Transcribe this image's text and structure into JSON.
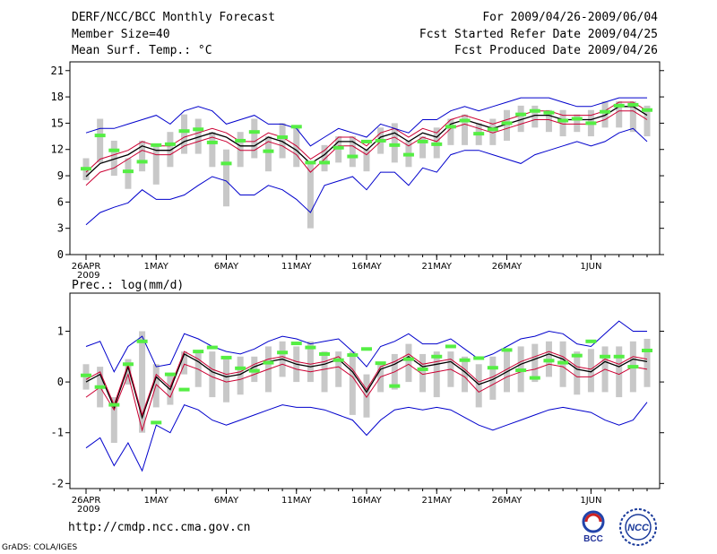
{
  "header": {
    "left": [
      "DERF/NCC/BCC Monthly Forecast",
      "Member Size=40",
      "Mean Surf. Temp.: °C"
    ],
    "right": [
      "For 2009/04/26-2009/06/04",
      "Fcst Started Refer Date 2009/04/25",
      "Fcst Produced Date 2009/04/26"
    ]
  },
  "footer": {
    "url": "http://cmdp.ncc.cma.gov.cn",
    "grads": "GrADS: COLA/IGES",
    "logo_bcc": "BCC",
    "logo_ncc": "NCC"
  },
  "colors": {
    "envelope": "#0000cc",
    "spread": "#cc0033",
    "mean": "#000000",
    "box": "#c8c8c8",
    "obs": "#55ee44"
  },
  "chart_data": [
    {
      "type": "line",
      "title": "Mean Surf. Temp.: °C",
      "days": 40,
      "ylim": [
        0,
        22
      ],
      "yticks": [
        0,
        3,
        6,
        9,
        12,
        15,
        18,
        21
      ],
      "xticks": [
        {
          "day": 0,
          "label": "26APR",
          "sub": "2009"
        },
        {
          "day": 5,
          "label": "1MAY"
        },
        {
          "day": 10,
          "label": "6MAY"
        },
        {
          "day": 15,
          "label": "11MAY"
        },
        {
          "day": 20,
          "label": "16MAY"
        },
        {
          "day": 25,
          "label": "21MAY"
        },
        {
          "day": 30,
          "label": "26MAY"
        },
        {
          "day": 36,
          "label": "1JUN"
        }
      ],
      "series": [
        {
          "name": "max",
          "values": [
            3.4,
            4.8,
            5.4,
            5.9,
            7.4,
            6.3,
            6.3,
            6.8,
            7.9,
            8.9,
            8.4,
            6.8,
            6.8,
            7.9,
            7.4,
            6.3,
            4.8,
            7.9,
            8.4,
            8.9,
            7.4,
            9.4,
            9.4,
            7.9,
            9.9,
            9.4,
            11.4,
            11.9,
            11.9,
            11.4,
            10.9,
            10.4,
            11.4,
            11.9,
            12.4,
            12.9,
            12.4,
            12.9,
            13.9,
            14.4,
            12.9
          ]
        },
        {
          "name": "upper",
          "values": [
            7.9,
            9.4,
            9.9,
            10.9,
            11.9,
            11.4,
            11.4,
            12.4,
            12.9,
            13.4,
            12.9,
            11.9,
            11.9,
            12.9,
            12.4,
            11.4,
            9.4,
            10.9,
            12.4,
            12.4,
            11.4,
            12.9,
            13.4,
            12.4,
            13.4,
            12.9,
            14.4,
            14.9,
            14.4,
            13.9,
            14.4,
            14.9,
            15.4,
            15.4,
            14.9,
            14.9,
            14.9,
            15.4,
            16.4,
            16.4,
            15.4
          ]
        },
        {
          "name": "mean",
          "values": [
            8.9,
            10.4,
            10.9,
            11.4,
            12.4,
            11.9,
            11.9,
            12.9,
            13.4,
            13.9,
            13.4,
            12.4,
            12.4,
            13.4,
            12.9,
            11.9,
            10.4,
            11.4,
            12.9,
            12.9,
            11.9,
            13.4,
            13.9,
            12.9,
            13.9,
            13.4,
            14.9,
            15.4,
            14.9,
            14.4,
            14.9,
            15.4,
            15.9,
            15.9,
            15.4,
            15.4,
            15.4,
            15.9,
            16.9,
            16.9,
            15.9
          ]
        },
        {
          "name": "lower",
          "values": [
            9.4,
            10.9,
            11.4,
            11.9,
            12.9,
            12.4,
            12.4,
            13.4,
            13.9,
            14.4,
            13.9,
            12.9,
            12.9,
            13.9,
            13.4,
            12.4,
            10.9,
            11.9,
            13.4,
            13.4,
            12.4,
            13.9,
            14.4,
            13.4,
            14.4,
            13.9,
            15.4,
            15.9,
            15.4,
            14.9,
            15.4,
            15.9,
            16.4,
            16.4,
            15.9,
            15.9,
            15.9,
            16.4,
            17.4,
            17.4,
            16.4
          ]
        },
        {
          "name": "min",
          "values": [
            13.9,
            14.4,
            14.4,
            14.9,
            15.4,
            15.9,
            14.9,
            16.4,
            16.9,
            16.4,
            14.9,
            15.4,
            15.9,
            14.9,
            14.9,
            14.4,
            12.4,
            13.4,
            14.4,
            13.9,
            13.4,
            14.9,
            14.4,
            13.9,
            15.4,
            15.4,
            16.4,
            16.9,
            16.4,
            16.9,
            17.4,
            17.9,
            17.9,
            17.9,
            17.4,
            16.9,
            16.9,
            17.4,
            17.9,
            17.9,
            17.9
          ]
        }
      ],
      "boxes": [
        {
          "day": 0,
          "lo": 8.5,
          "hi": 11
        },
        {
          "day": 1,
          "lo": 10.5,
          "hi": 15.5
        },
        {
          "day": 2,
          "lo": 9,
          "hi": 13
        },
        {
          "day": 3,
          "lo": 7.5,
          "hi": 11
        },
        {
          "day": 4,
          "lo": 9.5,
          "hi": 13
        },
        {
          "day": 5,
          "lo": 8,
          "hi": 12.5
        },
        {
          "day": 6,
          "lo": 10,
          "hi": 14
        },
        {
          "day": 7,
          "lo": 11.5,
          "hi": 16
        },
        {
          "day": 8,
          "lo": 11.5,
          "hi": 15.5
        },
        {
          "day": 9,
          "lo": 10,
          "hi": 14
        },
        {
          "day": 10,
          "lo": 5.5,
          "hi": 12
        },
        {
          "day": 11,
          "lo": 10,
          "hi": 14
        },
        {
          "day": 12,
          "lo": 11,
          "hi": 15.5
        },
        {
          "day": 13,
          "lo": 9.5,
          "hi": 13.5
        },
        {
          "day": 14,
          "lo": 11,
          "hi": 15
        },
        {
          "day": 15,
          "lo": 10,
          "hi": 14.5
        },
        {
          "day": 16,
          "lo": 3,
          "hi": 10.5
        },
        {
          "day": 17,
          "lo": 9.5,
          "hi": 12.5
        },
        {
          "day": 18,
          "lo": 10.5,
          "hi": 13.5
        },
        {
          "day": 19,
          "lo": 10,
          "hi": 13.5
        },
        {
          "day": 20,
          "lo": 9.5,
          "hi": 12
        },
        {
          "day": 21,
          "lo": 11.5,
          "hi": 14.5
        },
        {
          "day": 22,
          "lo": 10.5,
          "hi": 15
        },
        {
          "day": 23,
          "lo": 10,
          "hi": 13
        },
        {
          "day": 24,
          "lo": 11,
          "hi": 13.5
        },
        {
          "day": 25,
          "lo": 11,
          "hi": 14.5
        },
        {
          "day": 26,
          "lo": 12.5,
          "hi": 15.5
        },
        {
          "day": 27,
          "lo": 12.5,
          "hi": 16
        },
        {
          "day": 28,
          "lo": 12.5,
          "hi": 15
        },
        {
          "day": 29,
          "lo": 12.5,
          "hi": 15.5
        },
        {
          "day": 30,
          "lo": 13,
          "hi": 16.5
        },
        {
          "day": 31,
          "lo": 14,
          "hi": 17
        },
        {
          "day": 32,
          "lo": 14.5,
          "hi": 17
        },
        {
          "day": 33,
          "lo": 14,
          "hi": 16.5
        },
        {
          "day": 34,
          "lo": 13.5,
          "hi": 16.5
        },
        {
          "day": 35,
          "lo": 14,
          "hi": 16
        },
        {
          "day": 36,
          "lo": 13.5,
          "hi": 16.5
        },
        {
          "day": 37,
          "lo": 14.5,
          "hi": 17.5
        },
        {
          "day": 38,
          "lo": 14.5,
          "hi": 17.5
        },
        {
          "day": 39,
          "lo": 14,
          "hi": 17.5
        },
        {
          "day": 40,
          "lo": 13.5,
          "hi": 17
        }
      ],
      "obs": [
        9.8,
        13.6,
        11.9,
        9.5,
        10.6,
        12.5,
        12.6,
        14.1,
        14.3,
        12.8,
        10.4,
        13.0,
        14.0,
        11.8,
        13.4,
        14.6,
        10.5,
        10.5,
        12.2,
        11.2,
        12.9,
        13.0,
        12.5,
        11.4,
        12.9,
        12.6,
        14.6,
        15.3,
        13.8,
        14.3,
        15.0,
        16.0,
        16.4,
        16.2,
        15.3,
        15.5,
        15.0,
        16.3,
        17.0,
        17.1,
        16.5
      ]
    },
    {
      "type": "line",
      "title": "Prec.: log(mm/d)",
      "days": 40,
      "ylim": [
        -2.1,
        1.75
      ],
      "yticks": [
        -2,
        -1,
        0,
        1
      ],
      "xticks": [
        {
          "day": 0,
          "label": "26APR",
          "sub": "2009"
        },
        {
          "day": 5,
          "label": "1MAY"
        },
        {
          "day": 10,
          "label": "6MAY"
        },
        {
          "day": 15,
          "label": "11MAY"
        },
        {
          "day": 20,
          "label": "16MAY"
        },
        {
          "day": 25,
          "label": "21MAY"
        },
        {
          "day": 30,
          "label": "26MAY"
        },
        {
          "day": 36,
          "label": "1JUN"
        }
      ],
      "series": [
        {
          "name": "min",
          "values": [
            -1.3,
            -1.1,
            -1.65,
            -1.2,
            -1.75,
            -0.85,
            -1.0,
            -0.45,
            -0.55,
            -0.75,
            -0.85,
            -0.75,
            -0.65,
            -0.55,
            -0.45,
            -0.5,
            -0.5,
            -0.55,
            -0.65,
            -0.75,
            -1.05,
            -0.75,
            -0.55,
            -0.5,
            -0.55,
            -0.5,
            -0.55,
            -0.7,
            -0.85,
            -0.95,
            -0.85,
            -0.75,
            -0.65,
            -0.55,
            -0.5,
            -0.55,
            -0.6,
            -0.75,
            -0.85,
            -0.75,
            -0.4
          ]
        },
        {
          "name": "lower",
          "values": [
            -0.3,
            -0.1,
            -0.55,
            0.15,
            -0.95,
            -0.05,
            -0.3,
            0.35,
            0.25,
            0.1,
            0.0,
            0.05,
            0.15,
            0.25,
            0.35,
            0.25,
            0.2,
            0.25,
            0.3,
            0.1,
            -0.3,
            0.1,
            0.2,
            0.35,
            0.15,
            0.2,
            0.25,
            0.1,
            -0.2,
            -0.05,
            0.1,
            0.2,
            0.25,
            0.35,
            0.3,
            0.1,
            0.1,
            0.25,
            0.15,
            0.3,
            0.25
          ]
        },
        {
          "name": "mean",
          "values": [
            0.0,
            0.15,
            -0.5,
            0.3,
            -0.7,
            0.1,
            -0.15,
            0.55,
            0.4,
            0.2,
            0.1,
            0.15,
            0.3,
            0.4,
            0.45,
            0.35,
            0.3,
            0.35,
            0.45,
            0.2,
            -0.2,
            0.25,
            0.35,
            0.5,
            0.3,
            0.35,
            0.4,
            0.2,
            -0.05,
            0.05,
            0.2,
            0.35,
            0.45,
            0.55,
            0.45,
            0.25,
            0.2,
            0.4,
            0.3,
            0.45,
            0.4
          ]
        },
        {
          "name": "upper",
          "values": [
            0.05,
            0.2,
            -0.45,
            0.35,
            -0.65,
            0.15,
            -0.1,
            0.6,
            0.45,
            0.25,
            0.15,
            0.2,
            0.35,
            0.45,
            0.5,
            0.4,
            0.35,
            0.4,
            0.5,
            0.25,
            -0.15,
            0.3,
            0.4,
            0.55,
            0.35,
            0.4,
            0.45,
            0.25,
            0.0,
            0.1,
            0.25,
            0.4,
            0.5,
            0.6,
            0.5,
            0.3,
            0.25,
            0.45,
            0.35,
            0.5,
            0.45
          ]
        },
        {
          "name": "max",
          "values": [
            0.7,
            0.8,
            0.2,
            0.7,
            0.9,
            0.3,
            0.35,
            0.95,
            0.85,
            0.7,
            0.6,
            0.55,
            0.65,
            0.8,
            0.9,
            0.85,
            0.75,
            0.8,
            0.85,
            0.6,
            0.3,
            0.7,
            0.8,
            0.95,
            0.75,
            0.75,
            0.85,
            0.65,
            0.45,
            0.55,
            0.7,
            0.85,
            0.9,
            1.0,
            0.95,
            0.75,
            0.7,
            0.95,
            1.2,
            1.0,
            1.0
          ]
        }
      ],
      "boxes": [
        {
          "day": 0,
          "lo": -0.15,
          "hi": 0.35
        },
        {
          "day": 1,
          "lo": -0.5,
          "hi": 0.3
        },
        {
          "day": 2,
          "lo": -1.2,
          "hi": -0.3
        },
        {
          "day": 3,
          "lo": -0.05,
          "hi": 0.45
        },
        {
          "day": 4,
          "lo": -1.0,
          "hi": 1.0
        },
        {
          "day": 5,
          "lo": -0.5,
          "hi": 0.35
        },
        {
          "day": 6,
          "lo": -0.45,
          "hi": 0.15
        },
        {
          "day": 7,
          "lo": 0.15,
          "hi": 0.6
        },
        {
          "day": 8,
          "lo": -0.1,
          "hi": 0.6
        },
        {
          "day": 9,
          "lo": -0.3,
          "hi": 0.6
        },
        {
          "day": 10,
          "lo": -0.4,
          "hi": 0.45
        },
        {
          "day": 11,
          "lo": -0.25,
          "hi": 0.5
        },
        {
          "day": 12,
          "lo": 0.0,
          "hi": 0.5
        },
        {
          "day": 13,
          "lo": -0.2,
          "hi": 0.7
        },
        {
          "day": 14,
          "lo": 0.1,
          "hi": 0.8
        },
        {
          "day": 15,
          "lo": 0.0,
          "hi": 0.7
        },
        {
          "day": 16,
          "lo": 0.0,
          "hi": 0.8
        },
        {
          "day": 17,
          "lo": -0.2,
          "hi": 0.6
        },
        {
          "day": 18,
          "lo": -0.1,
          "hi": 0.6
        },
        {
          "day": 19,
          "lo": -0.65,
          "hi": 0.6
        },
        {
          "day": 20,
          "lo": -0.7,
          "hi": 0.15
        },
        {
          "day": 21,
          "lo": -0.2,
          "hi": 0.4
        },
        {
          "day": 22,
          "lo": -0.15,
          "hi": 0.55
        },
        {
          "day": 23,
          "lo": 0.0,
          "hi": 0.75
        },
        {
          "day": 24,
          "lo": -0.2,
          "hi": 0.55
        },
        {
          "day": 25,
          "lo": -0.3,
          "hi": 0.6
        },
        {
          "day": 26,
          "lo": -0.1,
          "hi": 0.6
        },
        {
          "day": 27,
          "lo": -0.2,
          "hi": 0.5
        },
        {
          "day": 28,
          "lo": -0.5,
          "hi": 0.35
        },
        {
          "day": 29,
          "lo": -0.35,
          "hi": 0.5
        },
        {
          "day": 30,
          "lo": -0.2,
          "hi": 0.6
        },
        {
          "day": 31,
          "lo": -0.2,
          "hi": 0.7
        },
        {
          "day": 32,
          "lo": 0.0,
          "hi": 0.75
        },
        {
          "day": 33,
          "lo": 0.1,
          "hi": 0.8
        },
        {
          "day": 34,
          "lo": -0.1,
          "hi": 0.8
        },
        {
          "day": 35,
          "lo": -0.25,
          "hi": 0.6
        },
        {
          "day": 36,
          "lo": -0.2,
          "hi": 0.65
        },
        {
          "day": 37,
          "lo": -0.2,
          "hi": 0.7
        },
        {
          "day": 38,
          "lo": -0.3,
          "hi": 0.7
        },
        {
          "day": 39,
          "lo": -0.2,
          "hi": 0.8
        },
        {
          "day": 40,
          "lo": -0.1,
          "hi": 0.85
        }
      ],
      "obs": [
        0.13,
        -0.1,
        -0.45,
        0.35,
        0.8,
        -0.8,
        0.15,
        -0.15,
        0.6,
        0.68,
        0.48,
        0.27,
        0.22,
        0.38,
        0.58,
        0.76,
        0.68,
        0.55,
        0.43,
        0.53,
        0.65,
        0.37,
        -0.08,
        0.45,
        0.25,
        0.5,
        0.7,
        0.43,
        0.47,
        0.28,
        0.63,
        0.23,
        0.08,
        0.42,
        0.38,
        0.52,
        0.8,
        0.5,
        0.5,
        0.3,
        0.62
      ]
    }
  ]
}
